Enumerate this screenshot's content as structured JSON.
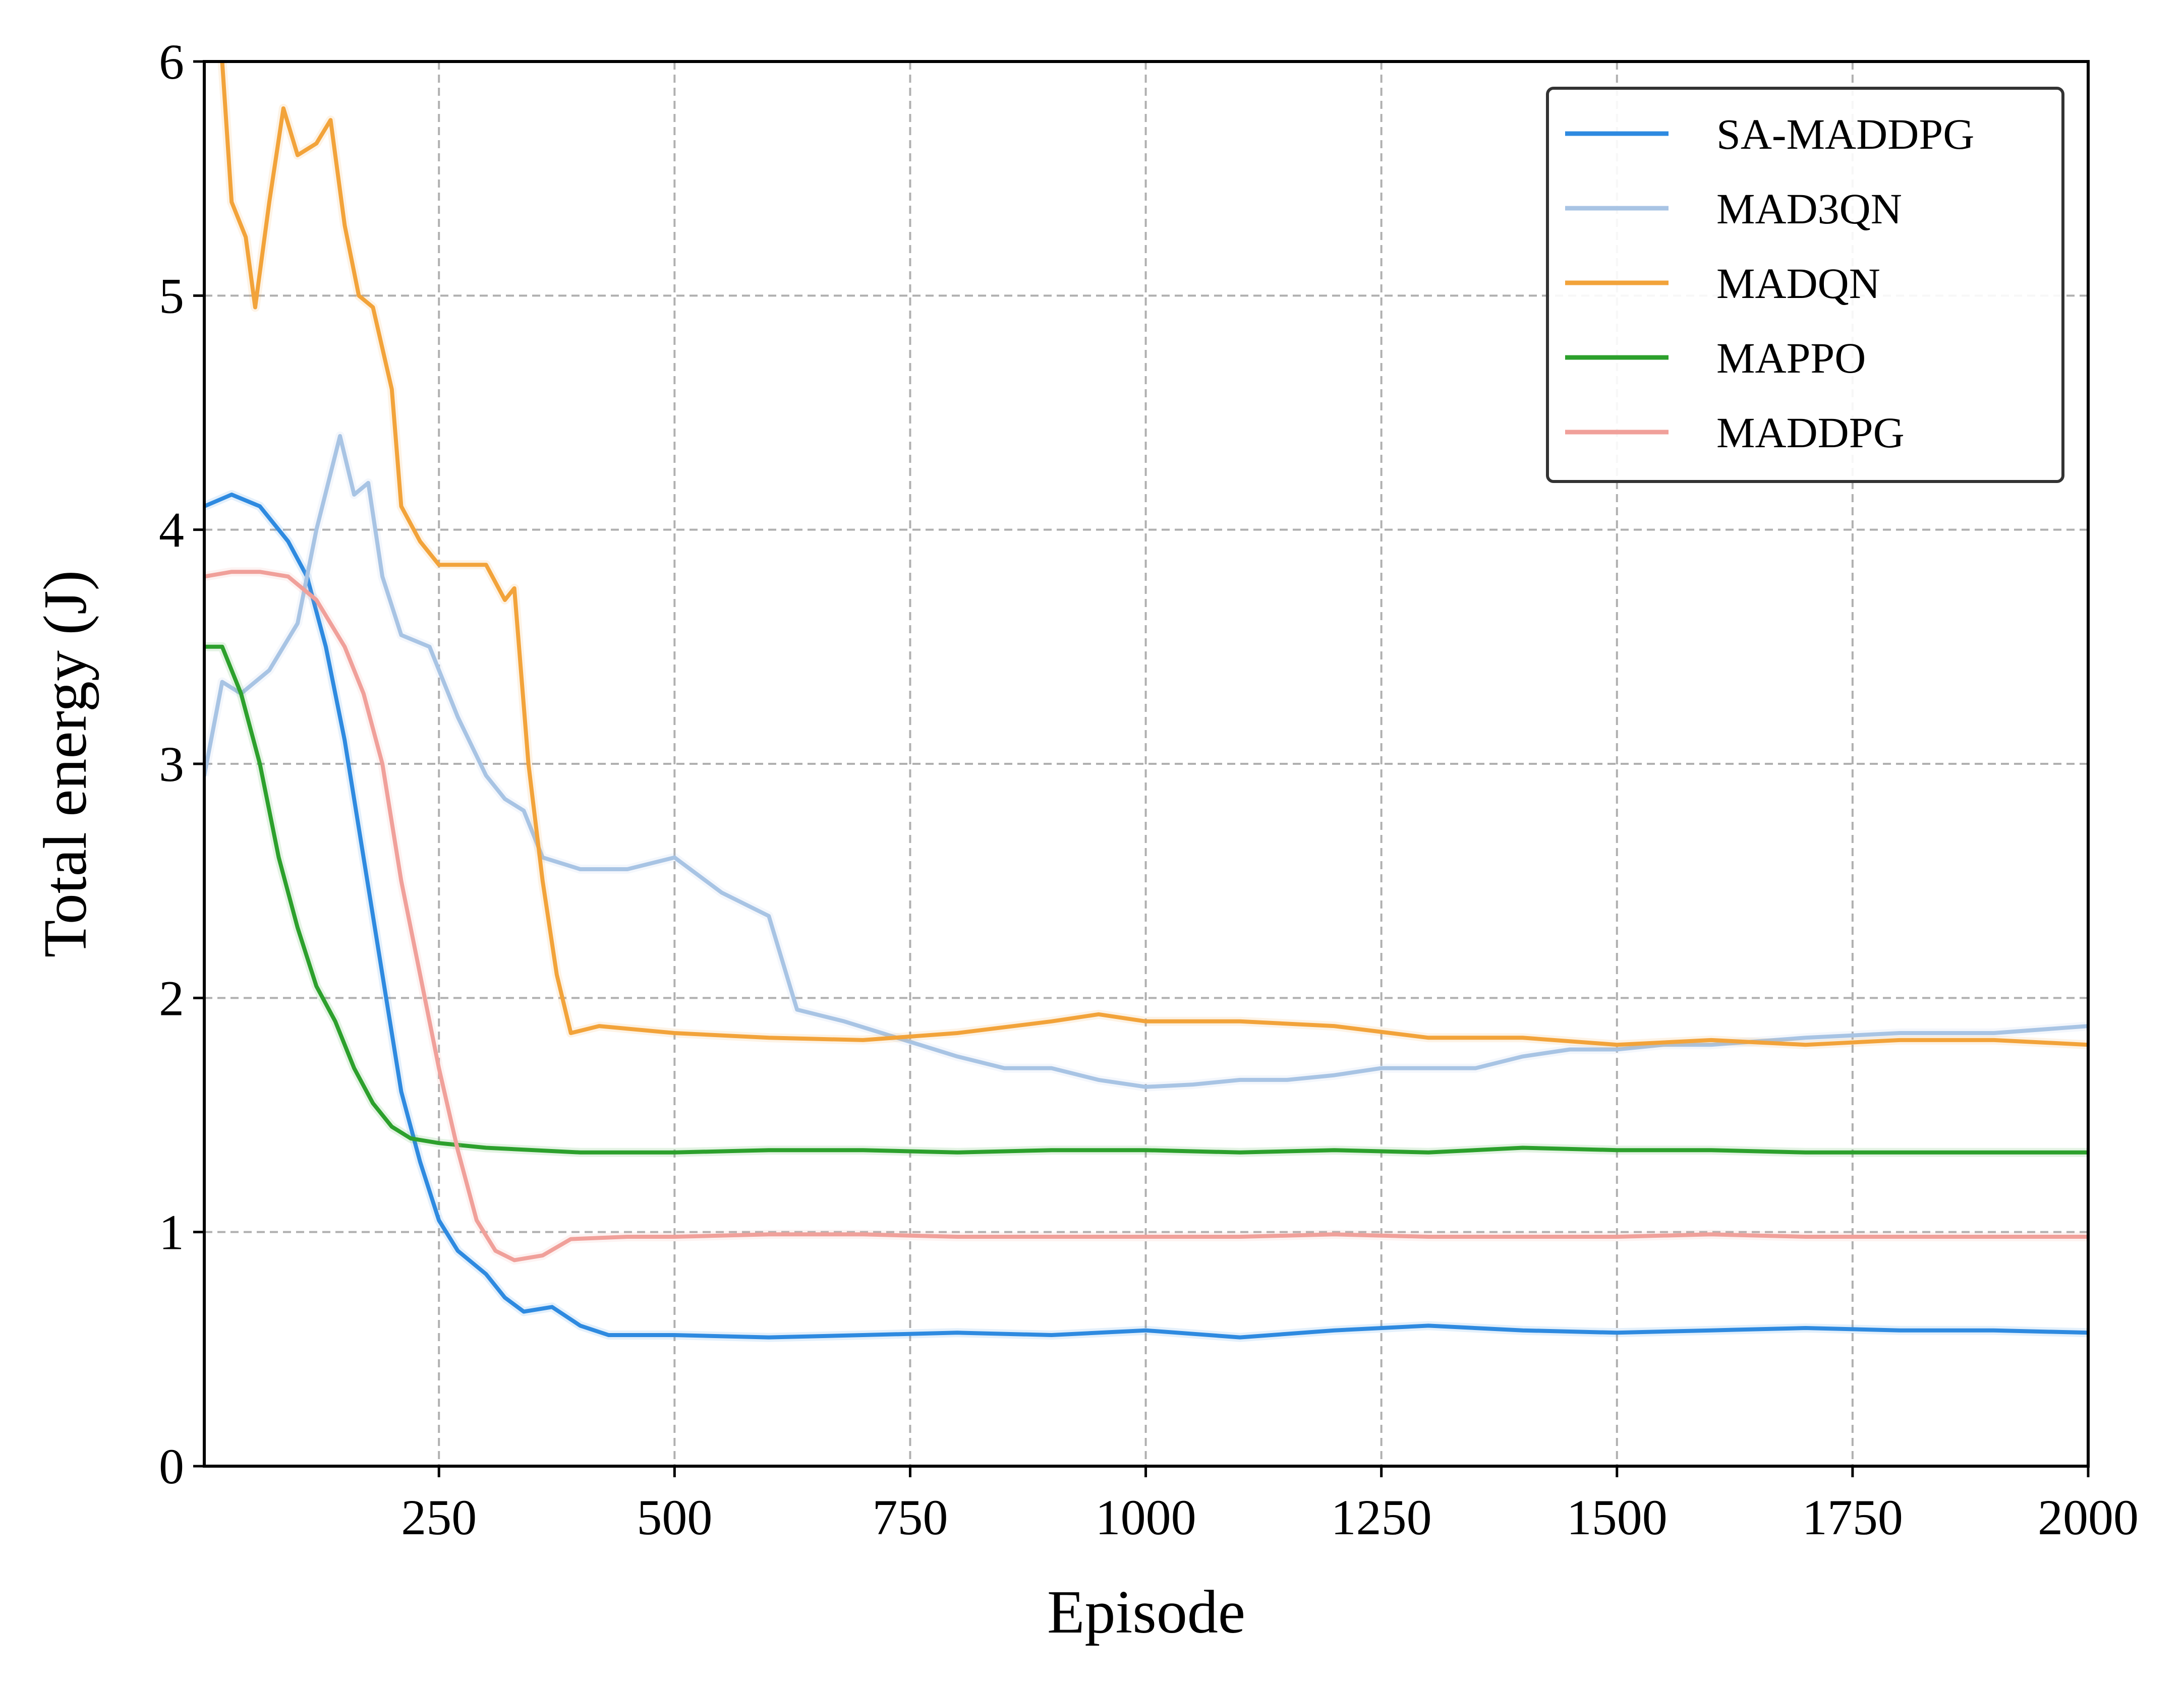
{
  "chart_data": {
    "type": "line",
    "xlabel": "Episode",
    "ylabel": "Total energy (J)",
    "xlim": [
      1,
      2000
    ],
    "ylim": [
      0,
      6
    ],
    "xticks": [
      250,
      500,
      750,
      1000,
      1250,
      1500,
      1750,
      2000
    ],
    "yticks": [
      0,
      1,
      2,
      3,
      4,
      5,
      6
    ],
    "grid": true,
    "legend_position": "top-right",
    "series": [
      {
        "name": "SA-MADDPG",
        "color": "#2e8ae0",
        "points": [
          [
            1,
            4.1
          ],
          [
            30,
            4.15
          ],
          [
            60,
            4.1
          ],
          [
            90,
            3.95
          ],
          [
            110,
            3.8
          ],
          [
            130,
            3.5
          ],
          [
            150,
            3.1
          ],
          [
            170,
            2.6
          ],
          [
            190,
            2.1
          ],
          [
            210,
            1.6
          ],
          [
            230,
            1.3
          ],
          [
            250,
            1.05
          ],
          [
            270,
            0.92
          ],
          [
            300,
            0.82
          ],
          [
            320,
            0.72
          ],
          [
            340,
            0.66
          ],
          [
            370,
            0.68
          ],
          [
            400,
            0.6
          ],
          [
            430,
            0.56
          ],
          [
            500,
            0.56
          ],
          [
            600,
            0.55
          ],
          [
            700,
            0.56
          ],
          [
            800,
            0.57
          ],
          [
            900,
            0.56
          ],
          [
            1000,
            0.58
          ],
          [
            1100,
            0.55
          ],
          [
            1200,
            0.58
          ],
          [
            1300,
            0.6
          ],
          [
            1400,
            0.58
          ],
          [
            1500,
            0.57
          ],
          [
            1600,
            0.58
          ],
          [
            1700,
            0.59
          ],
          [
            1800,
            0.58
          ],
          [
            1900,
            0.58
          ],
          [
            2000,
            0.57
          ]
        ]
      },
      {
        "name": "MAD3QN",
        "color": "#a8c4e4",
        "points": [
          [
            1,
            2.95
          ],
          [
            20,
            3.35
          ],
          [
            40,
            3.3
          ],
          [
            70,
            3.4
          ],
          [
            100,
            3.6
          ],
          [
            120,
            4.0
          ],
          [
            145,
            4.4
          ],
          [
            160,
            4.15
          ],
          [
            175,
            4.2
          ],
          [
            190,
            3.8
          ],
          [
            210,
            3.55
          ],
          [
            240,
            3.5
          ],
          [
            270,
            3.2
          ],
          [
            300,
            2.95
          ],
          [
            320,
            2.85
          ],
          [
            340,
            2.8
          ],
          [
            360,
            2.6
          ],
          [
            400,
            2.55
          ],
          [
            450,
            2.55
          ],
          [
            500,
            2.6
          ],
          [
            550,
            2.45
          ],
          [
            600,
            2.35
          ],
          [
            630,
            1.95
          ],
          [
            680,
            1.9
          ],
          [
            720,
            1.85
          ],
          [
            760,
            1.8
          ],
          [
            800,
            1.75
          ],
          [
            850,
            1.7
          ],
          [
            900,
            1.7
          ],
          [
            950,
            1.65
          ],
          [
            1000,
            1.62
          ],
          [
            1050,
            1.63
          ],
          [
            1100,
            1.65
          ],
          [
            1150,
            1.65
          ],
          [
            1200,
            1.67
          ],
          [
            1250,
            1.7
          ],
          [
            1300,
            1.7
          ],
          [
            1350,
            1.7
          ],
          [
            1400,
            1.75
          ],
          [
            1450,
            1.78
          ],
          [
            1500,
            1.78
          ],
          [
            1550,
            1.8
          ],
          [
            1600,
            1.8
          ],
          [
            1700,
            1.83
          ],
          [
            1800,
            1.85
          ],
          [
            1900,
            1.85
          ],
          [
            2000,
            1.88
          ]
        ]
      },
      {
        "name": "MADQN",
        "color": "#f2a33a",
        "points": [
          [
            20,
            6.0
          ],
          [
            30,
            5.4
          ],
          [
            45,
            5.25
          ],
          [
            55,
            4.95
          ],
          [
            70,
            5.4
          ],
          [
            85,
            5.8
          ],
          [
            100,
            5.6
          ],
          [
            120,
            5.65
          ],
          [
            135,
            5.75
          ],
          [
            150,
            5.3
          ],
          [
            165,
            5.0
          ],
          [
            180,
            4.95
          ],
          [
            200,
            4.6
          ],
          [
            210,
            4.1
          ],
          [
            230,
            3.95
          ],
          [
            250,
            3.85
          ],
          [
            280,
            3.85
          ],
          [
            300,
            3.85
          ],
          [
            320,
            3.7
          ],
          [
            330,
            3.75
          ],
          [
            345,
            3.0
          ],
          [
            360,
            2.5
          ],
          [
            375,
            2.1
          ],
          [
            390,
            1.85
          ],
          [
            420,
            1.88
          ],
          [
            500,
            1.85
          ],
          [
            600,
            1.83
          ],
          [
            700,
            1.82
          ],
          [
            800,
            1.85
          ],
          [
            900,
            1.9
          ],
          [
            950,
            1.93
          ],
          [
            1000,
            1.9
          ],
          [
            1100,
            1.9
          ],
          [
            1200,
            1.88
          ],
          [
            1300,
            1.83
          ],
          [
            1400,
            1.83
          ],
          [
            1500,
            1.8
          ],
          [
            1600,
            1.82
          ],
          [
            1700,
            1.8
          ],
          [
            1800,
            1.82
          ],
          [
            1900,
            1.82
          ],
          [
            2000,
            1.8
          ]
        ]
      },
      {
        "name": "MAPPO",
        "color": "#2ca02c",
        "points": [
          [
            1,
            3.5
          ],
          [
            20,
            3.5
          ],
          [
            40,
            3.3
          ],
          [
            60,
            3.0
          ],
          [
            80,
            2.6
          ],
          [
            100,
            2.3
          ],
          [
            120,
            2.05
          ],
          [
            140,
            1.9
          ],
          [
            160,
            1.7
          ],
          [
            180,
            1.55
          ],
          [
            200,
            1.45
          ],
          [
            220,
            1.4
          ],
          [
            250,
            1.38
          ],
          [
            300,
            1.36
          ],
          [
            400,
            1.34
          ],
          [
            500,
            1.34
          ],
          [
            600,
            1.35
          ],
          [
            700,
            1.35
          ],
          [
            800,
            1.34
          ],
          [
            900,
            1.35
          ],
          [
            1000,
            1.35
          ],
          [
            1100,
            1.34
          ],
          [
            1200,
            1.35
          ],
          [
            1300,
            1.34
          ],
          [
            1400,
            1.36
          ],
          [
            1500,
            1.35
          ],
          [
            1600,
            1.35
          ],
          [
            1700,
            1.34
          ],
          [
            1800,
            1.34
          ],
          [
            1900,
            1.34
          ],
          [
            2000,
            1.34
          ]
        ]
      },
      {
        "name": "MADDPG",
        "color": "#f0a09a",
        "points": [
          [
            1,
            3.8
          ],
          [
            30,
            3.82
          ],
          [
            60,
            3.82
          ],
          [
            90,
            3.8
          ],
          [
            120,
            3.7
          ],
          [
            150,
            3.5
          ],
          [
            170,
            3.3
          ],
          [
            190,
            3.0
          ],
          [
            210,
            2.5
          ],
          [
            230,
            2.1
          ],
          [
            250,
            1.7
          ],
          [
            270,
            1.35
          ],
          [
            290,
            1.05
          ],
          [
            310,
            0.92
          ],
          [
            330,
            0.88
          ],
          [
            360,
            0.9
          ],
          [
            390,
            0.97
          ],
          [
            450,
            0.98
          ],
          [
            500,
            0.98
          ],
          [
            600,
            0.99
          ],
          [
            700,
            0.99
          ],
          [
            800,
            0.98
          ],
          [
            900,
            0.98
          ],
          [
            1000,
            0.98
          ],
          [
            1100,
            0.98
          ],
          [
            1200,
            0.99
          ],
          [
            1300,
            0.98
          ],
          [
            1400,
            0.98
          ],
          [
            1500,
            0.98
          ],
          [
            1600,
            0.99
          ],
          [
            1700,
            0.98
          ],
          [
            1800,
            0.98
          ],
          [
            1900,
            0.98
          ],
          [
            2000,
            0.98
          ]
        ]
      }
    ]
  }
}
